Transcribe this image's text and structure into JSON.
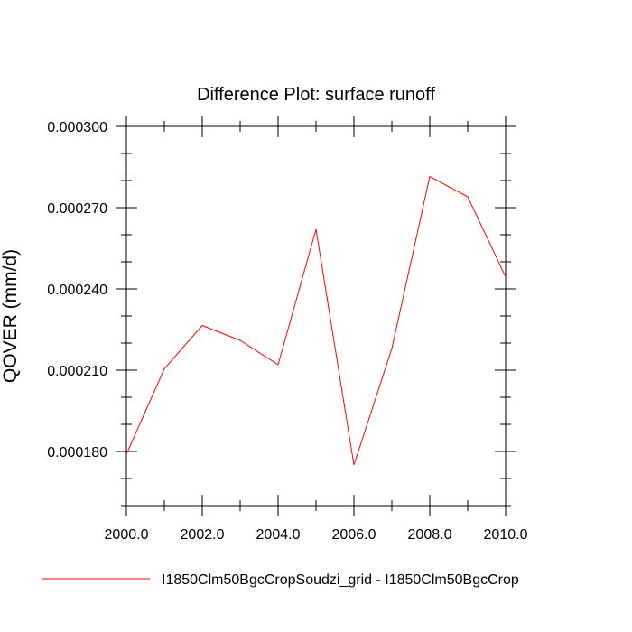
{
  "chart_data": {
    "type": "line",
    "title": "Difference Plot: surface runoff",
    "xlabel": "",
    "ylabel": "QOVER  (mm/d)",
    "xlim": [
      2000,
      2010
    ],
    "ylim": [
      0.00016,
      0.0003
    ],
    "x_ticks": [
      2000,
      2002,
      2004,
      2006,
      2008,
      2010
    ],
    "x_tick_labels": [
      "2000.0",
      "2002.0",
      "2004.0",
      "2006.0",
      "2008.0",
      "2010.0"
    ],
    "y_ticks": [
      0.00018,
      0.00021,
      0.00024,
      0.00027,
      0.0003
    ],
    "y_tick_labels": [
      "0.000180",
      "0.000210",
      "0.000240",
      "0.000270",
      "0.000300"
    ],
    "grid": false,
    "legend_position": "bottom",
    "series": [
      {
        "name": "I1850Clm50BgcCropSoudzi_grid - I1850Clm50BgcCrop",
        "color": "#ff0000",
        "x": [
          2000,
          2001,
          2002,
          2003,
          2004,
          2005,
          2006,
          2007,
          2008,
          2009,
          2010
        ],
        "y": [
          0.000179,
          0.0002105,
          0.0002265,
          0.000221,
          0.000212,
          0.000262,
          0.000175,
          0.000218,
          0.0002815,
          0.000274,
          0.0002445
        ]
      }
    ]
  }
}
